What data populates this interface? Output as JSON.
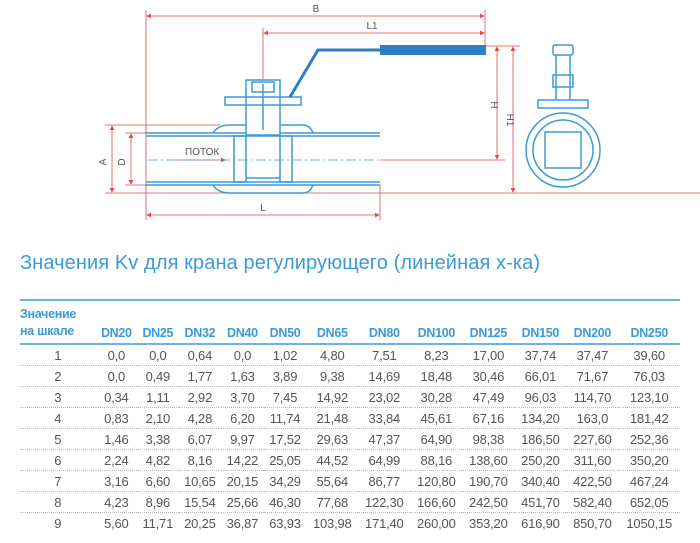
{
  "drawing": {
    "labels": {
      "B": "B",
      "L1": "L1",
      "H": "H",
      "H1": "H1",
      "A": "A",
      "D": "D",
      "L": "L",
      "flow": "ПОТОК"
    },
    "colors": {
      "outline": "#3d9ad8",
      "handle": "#2a7fc6",
      "dimension": "#e5484d"
    }
  },
  "title": "Значения Kv для крана регулирующего (линейная х-ка)",
  "table": {
    "header_first_line1": "Значение",
    "header_first_line2": "на шкале",
    "columns": [
      "DN20",
      "DN25",
      "DN32",
      "DN40",
      "DN50",
      "DN65",
      "DN80",
      "DN100",
      "DN125",
      "DN150",
      "DN200",
      "DN250"
    ],
    "rows": [
      [
        "1",
        "0,0",
        "0,0",
        "0,64",
        "0,0",
        "1,02",
        "4,80",
        "7,51",
        "8,23",
        "17,00",
        "37,74",
        "37,47",
        "39,60"
      ],
      [
        "2",
        "0,0",
        "0,49",
        "1,77",
        "1,63",
        "3,89",
        "9,38",
        "14,69",
        "18,48",
        "30,46",
        "66,01",
        "71,67",
        "76,03"
      ],
      [
        "3",
        "0,34",
        "1,11",
        "2,92",
        "3,70",
        "7,45",
        "14,92",
        "23,02",
        "30,28",
        "47,49",
        "96,03",
        "114,70",
        "123,10"
      ],
      [
        "4",
        "0,83",
        "2,10",
        "4,28",
        "6,20",
        "11,74",
        "21,48",
        "33,84",
        "45,61",
        "67,16",
        "134,20",
        "163,0",
        "181,42"
      ],
      [
        "5",
        "1,46",
        "3,38",
        "6,07",
        "9,97",
        "17,52",
        "29,63",
        "47,37",
        "64,90",
        "98,38",
        "186,50",
        "227,60",
        "252,36"
      ],
      [
        "6",
        "2,24",
        "4,82",
        "8,16",
        "14,22",
        "25,05",
        "44,52",
        "64,99",
        "88,16",
        "138,60",
        "250,20",
        "311,60",
        "350,20"
      ],
      [
        "7",
        "3,16",
        "6,60",
        "10,65",
        "20,15",
        "34,29",
        "55,64",
        "86,77",
        "120,80",
        "190,70",
        "340,40",
        "422,50",
        "467,24"
      ],
      [
        "8",
        "4,23",
        "8,96",
        "15,54",
        "25,66",
        "46,30",
        "77,68",
        "122,30",
        "166,60",
        "242,50",
        "451,70",
        "582,40",
        "652,05"
      ],
      [
        "9",
        "5,60",
        "11,71",
        "20,25",
        "36,87",
        "63,93",
        "103,98",
        "171,40",
        "260,00",
        "353,20",
        "616,90",
        "850,70",
        "1050,15"
      ]
    ]
  }
}
